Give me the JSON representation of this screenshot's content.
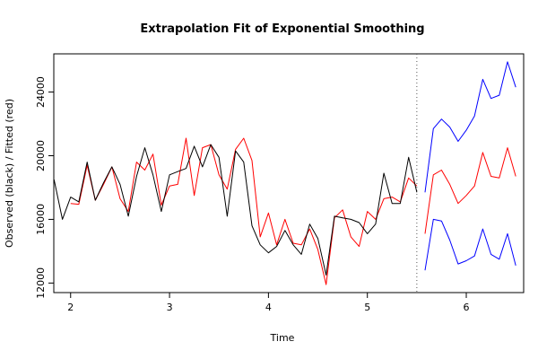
{
  "chart_data": {
    "type": "line",
    "title": "Extrapolation Fit of Exponential Smoothing",
    "xlabel": "Time",
    "ylabel": "Observed (black) / Fitted (red)",
    "xlim": [
      1.83,
      6.58
    ],
    "ylim": [
      11400,
      26400
    ],
    "x_ticks": [
      2,
      3,
      4,
      5,
      6
    ],
    "x_tick_labels": [
      "2",
      "3",
      "4",
      "5",
      "6"
    ],
    "y_ticks": [
      12000,
      16000,
      20000,
      24000
    ],
    "y_tick_labels": [
      "12000",
      "16000",
      "20000",
      "24000"
    ],
    "grid": false,
    "legend": "none",
    "forecast_origin": 5.5,
    "colors": {
      "observed": "#000000",
      "fitted": "#ff0000",
      "bounds": "#0000ff",
      "forecast_origin": "#555555"
    },
    "series": [
      {
        "key": "observed",
        "x": [
          1.833,
          1.917,
          2.0,
          2.083,
          2.167,
          2.25,
          2.333,
          2.417,
          2.5,
          2.583,
          2.667,
          2.75,
          2.833,
          2.917,
          3.0,
          3.083,
          3.167,
          3.25,
          3.333,
          3.417,
          3.5,
          3.583,
          3.667,
          3.75,
          3.833,
          3.917,
          4.0,
          4.083,
          4.167,
          4.25,
          4.333,
          4.417,
          4.5,
          4.583,
          4.667,
          4.75,
          4.833,
          4.917,
          5.0,
          5.083,
          5.167,
          5.25,
          5.333,
          5.417,
          5.5
        ],
        "values": [
          18500,
          16000,
          17400,
          17100,
          19600,
          17200,
          18300,
          19300,
          18200,
          16200,
          18700,
          20500,
          18800,
          16500,
          18800,
          19000,
          19200,
          20600,
          19300,
          20700,
          19900,
          16200,
          20300,
          19600,
          15600,
          14400,
          13900,
          14300,
          15300,
          14400,
          13800,
          15700,
          14800,
          12500,
          16200,
          16100,
          16000,
          15800,
          15100,
          15700,
          18900,
          17000,
          17000,
          19900,
          17700
        ]
      },
      {
        "key": "fitted",
        "x": [
          2.0,
          2.083,
          2.167,
          2.25,
          2.333,
          2.417,
          2.5,
          2.583,
          2.667,
          2.75,
          2.833,
          2.917,
          3.0,
          3.083,
          3.167,
          3.25,
          3.333,
          3.417,
          3.5,
          3.583,
          3.667,
          3.75,
          3.833,
          3.917,
          4.0,
          4.083,
          4.167,
          4.25,
          4.333,
          4.417,
          4.5,
          4.583,
          4.667,
          4.75,
          4.833,
          4.917,
          5.0,
          5.083,
          5.167,
          5.25,
          5.333,
          5.417,
          5.5
        ],
        "values": [
          17000,
          16950,
          19400,
          17200,
          18200,
          19300,
          17300,
          16500,
          19600,
          19100,
          20100,
          16900,
          18100,
          18200,
          21100,
          17500,
          20500,
          20700,
          18800,
          17900,
          20400,
          21100,
          19700,
          14900,
          16400,
          14400,
          16000,
          14500,
          14400,
          15400,
          14100,
          11900,
          16100,
          16600,
          14900,
          14300,
          16500,
          16000,
          17300,
          17400,
          17100,
          18600,
          18100
        ]
      },
      {
        "key": "forecast",
        "x": [
          5.583,
          5.667,
          5.75,
          5.833,
          5.917,
          6.0,
          6.083,
          6.167,
          6.25,
          6.333,
          6.417,
          6.5
        ],
        "values": [
          15100,
          18800,
          19100,
          18200,
          17000,
          17500,
          18100,
          20200,
          18700,
          18600,
          20500,
          18700
        ]
      },
      {
        "key": "upper_bound",
        "x": [
          5.583,
          5.667,
          5.75,
          5.833,
          5.917,
          6.0,
          6.083,
          6.167,
          6.25,
          6.333,
          6.417,
          6.5
        ],
        "values": [
          17700,
          21700,
          22300,
          21800,
          20900,
          21600,
          22500,
          24800,
          23600,
          23800,
          25900,
          24300
        ]
      },
      {
        "key": "lower_bound",
        "x": [
          5.583,
          5.667,
          5.75,
          5.833,
          5.917,
          6.0,
          6.083,
          6.167,
          6.25,
          6.333,
          6.417,
          6.5
        ],
        "values": [
          12800,
          16000,
          15900,
          14700,
          13200,
          13400,
          13700,
          15400,
          13800,
          13500,
          15100,
          13100
        ]
      }
    ]
  }
}
